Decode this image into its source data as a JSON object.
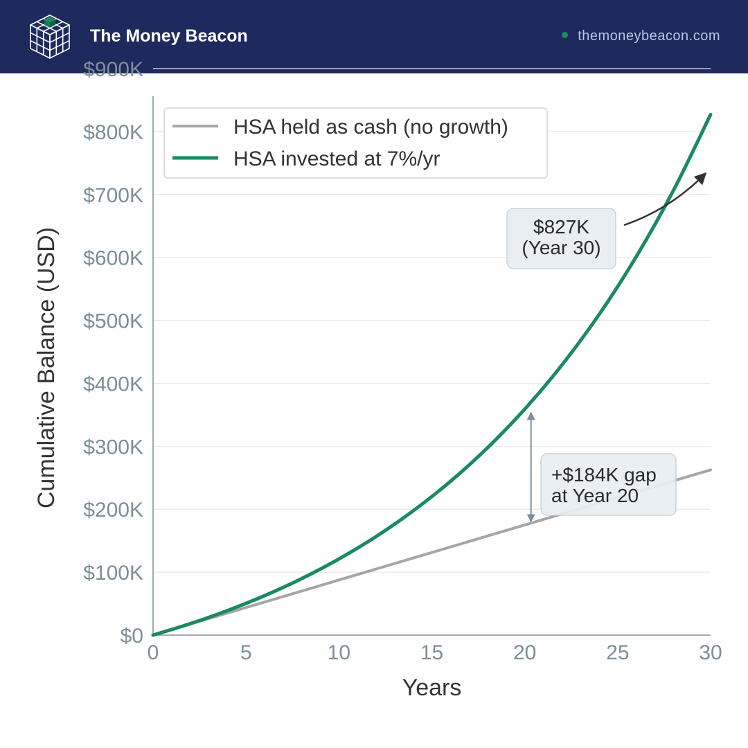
{
  "header": {
    "brand_name": "The Money Beacon",
    "site_url": "themoneybeacon.com",
    "logo_icon": "cube-grid-icon"
  },
  "colors": {
    "header_bg": "#1e2a5e",
    "accent_green": "#1b8a60",
    "cash_gray": "#a6a6a6",
    "axis_text": "#7b8f99"
  },
  "chart_data": {
    "type": "line",
    "xlabel": "Years",
    "ylabel": "Cumulative Balance (USD)",
    "xlim": [
      0,
      30
    ],
    "ylim": [
      0,
      900000
    ],
    "x_ticks": [
      0,
      5,
      10,
      15,
      20,
      25,
      30
    ],
    "x_tick_labels": [
      "0",
      "5",
      "10",
      "15",
      "20",
      "25",
      "30"
    ],
    "y_ticks": [
      0,
      100000,
      200000,
      300000,
      400000,
      500000,
      600000,
      700000,
      800000,
      900000
    ],
    "y_tick_labels": [
      "$0",
      "$100K",
      "$200K",
      "$300K",
      "$400K",
      "$500K",
      "$600K",
      "$700K",
      "$800K",
      "$900K"
    ],
    "grid": "horizontal",
    "legend_position": "top-left",
    "x": [
      0,
      2,
      4,
      6,
      8,
      10,
      12,
      14,
      16,
      18,
      20,
      22,
      24,
      26,
      28,
      30
    ],
    "series": [
      {
        "name": "HSA held as cash (no growth)",
        "color": "#a6a6a6",
        "values": [
          0,
          17500,
          35000,
          52500,
          70000,
          87500,
          105000,
          122500,
          140000,
          157500,
          175000,
          192500,
          210000,
          227500,
          245000,
          262500
        ]
      },
      {
        "name": "HSA invested at 7%/yr",
        "color": "#1b8a60",
        "values": [
          0,
          18100,
          38900,
          62600,
          89800,
          121000,
          156600,
          197500,
          244200,
          297700,
          359000,
          429100,
          509300,
          601200,
          706400,
          827000
        ]
      }
    ],
    "annotations": [
      {
        "text_lines": [
          "$827K",
          "(Year 30)"
        ],
        "x": 30,
        "y": 827000,
        "type": "arrow-callout"
      },
      {
        "text_lines": [
          "+$184K gap",
          "at Year 20"
        ],
        "x": 20,
        "y_from": 175000,
        "y_to": 359000,
        "type": "gap-bracket"
      }
    ]
  }
}
